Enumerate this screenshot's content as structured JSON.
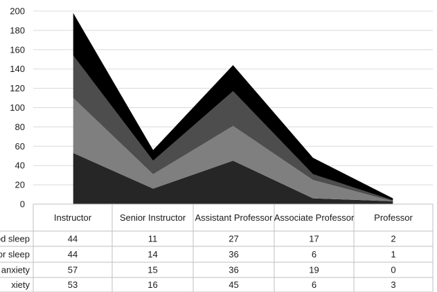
{
  "chart_data": {
    "type": "area",
    "stacked": true,
    "categories": [
      "Instructor",
      "Senior Instructor",
      "Assistant Professor",
      "Associate Professor",
      "Professor"
    ],
    "series": [
      {
        "name": "…ety",
        "color": "#262626",
        "values": [
          53,
          16,
          45,
          6,
          3
        ]
      },
      {
        "name": "… anxiety",
        "color": "#7f7f7f",
        "values": [
          57,
          15,
          36,
          19,
          0
        ]
      },
      {
        "name": "…or sleep",
        "color": "#4d4d4d",
        "values": [
          44,
          14,
          36,
          6,
          1
        ]
      },
      {
        "name": "…od sleep",
        "color": "#000000",
        "values": [
          44,
          11,
          27,
          17,
          2
        ]
      }
    ],
    "table_rows": [
      {
        "label": "od sleep",
        "values": [
          "44",
          "11",
          "27",
          "17",
          "2"
        ]
      },
      {
        "label": "or sleep",
        "values": [
          "44",
          "14",
          "36",
          "6",
          "1"
        ]
      },
      {
        "label": "anxiety",
        "values": [
          "57",
          "15",
          "36",
          "19",
          "0"
        ]
      },
      {
        "label": "xiety",
        "values": [
          "53",
          "16",
          "45",
          "6",
          "3"
        ]
      }
    ],
    "ylim": [
      0,
      200
    ],
    "yticks": [
      "0",
      "20",
      "40",
      "60",
      "80",
      "100",
      "120",
      "140",
      "160",
      "180",
      "200"
    ],
    "grid": true,
    "legend": "data table below chart"
  }
}
